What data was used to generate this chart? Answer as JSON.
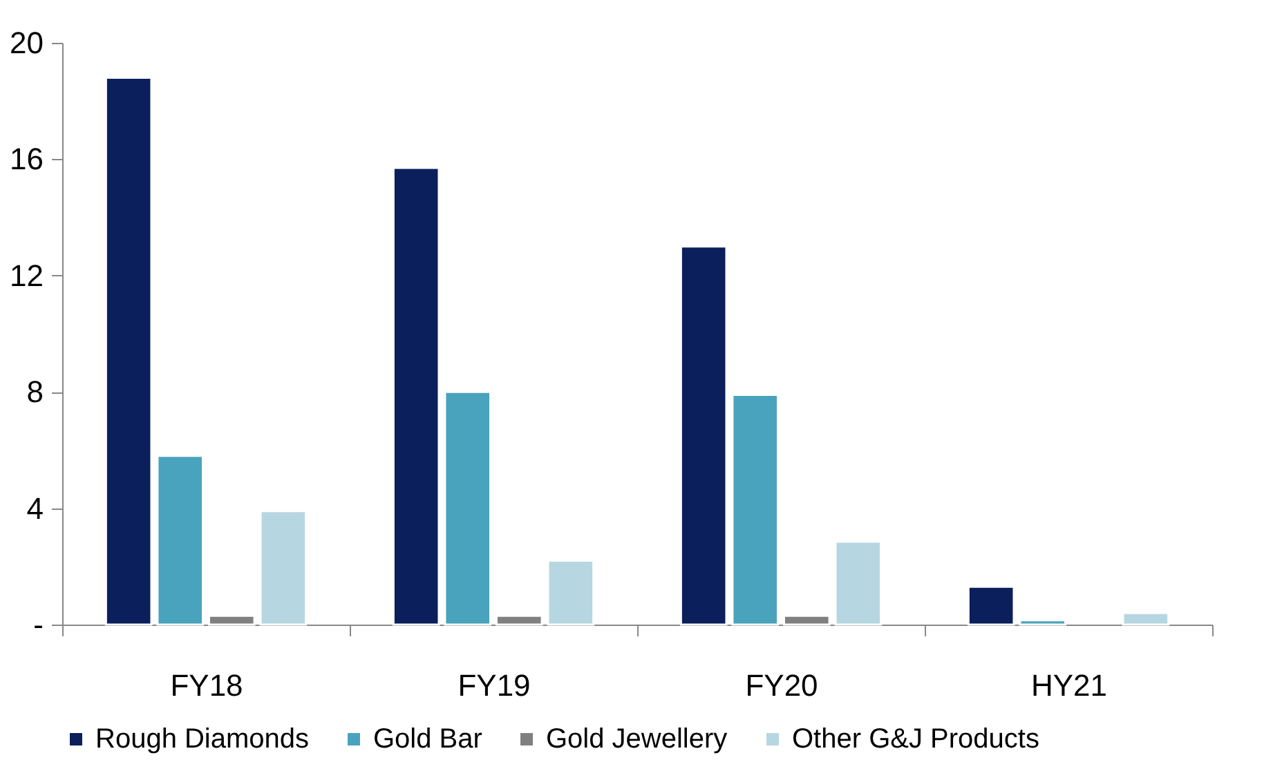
{
  "chart_data": {
    "type": "bar",
    "categories": [
      "FY18",
      "FY19",
      "FY20",
      "HY21"
    ],
    "series": [
      {
        "name": "Rough Diamonds",
        "color": "#0a1f5c",
        "values": [
          18.8,
          15.7,
          13.0,
          1.3
        ]
      },
      {
        "name": "Gold Bar",
        "color": "#4aa3bd",
        "values": [
          5.8,
          8.0,
          7.9,
          0.15
        ]
      },
      {
        "name": "Gold Jewellery",
        "color": "#808080",
        "values": [
          0.3,
          0.3,
          0.3,
          null
        ]
      },
      {
        "name": "Other G&J Products",
        "color": "#b6d7e2",
        "values": [
          3.9,
          2.2,
          2.85,
          0.4
        ]
      }
    ],
    "ylim": [
      0,
      20
    ],
    "yticks": [
      {
        "value": 0,
        "label": "-"
      },
      4,
      8,
      12,
      16,
      20
    ],
    "grid": false,
    "legend": "bottom"
  }
}
